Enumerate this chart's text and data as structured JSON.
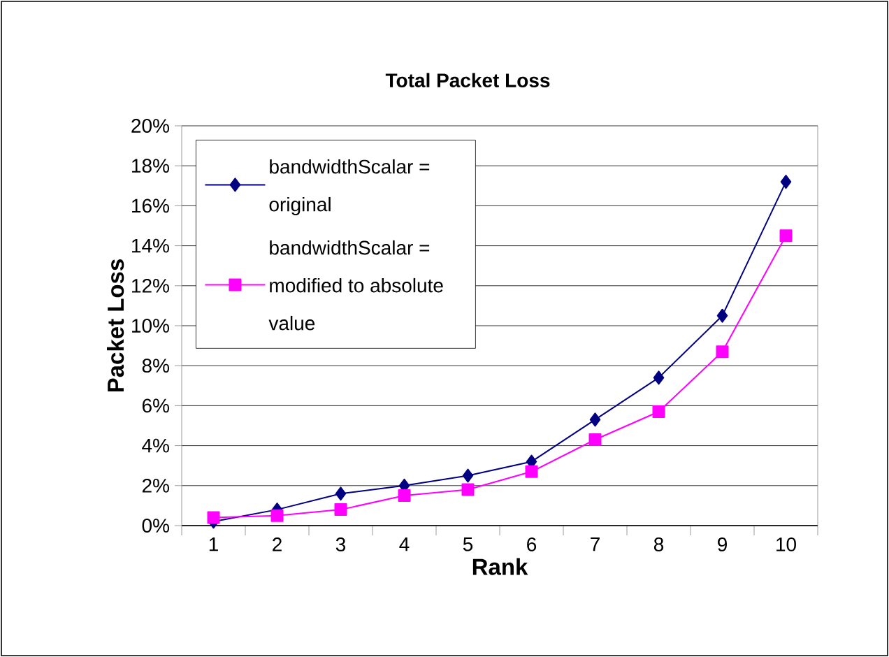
{
  "chart_data": {
    "type": "line",
    "title": "Total Packet Loss",
    "xlabel": "Rank",
    "ylabel": "Packet Loss",
    "categories": [
      "1",
      "2",
      "3",
      "4",
      "5",
      "6",
      "7",
      "8",
      "9",
      "10"
    ],
    "series": [
      {
        "name": "bandwidthScalar = original",
        "color": "#000080",
        "marker": "diamond",
        "values": [
          0.2,
          0.8,
          1.6,
          2.0,
          2.5,
          3.2,
          5.3,
          7.4,
          10.5,
          17.2
        ]
      },
      {
        "name": "bandwidthScalar = modified to absolute value",
        "color": "#ff00ff",
        "marker": "square",
        "values": [
          0.4,
          0.5,
          0.8,
          1.5,
          1.8,
          2.7,
          4.3,
          5.7,
          8.7,
          14.5
        ]
      }
    ],
    "ylim": [
      0,
      20
    ],
    "yticks": [
      {
        "value": 0,
        "label": "0%"
      },
      {
        "value": 2,
        "label": "2%"
      },
      {
        "value": 4,
        "label": "4%"
      },
      {
        "value": 6,
        "label": "6%"
      },
      {
        "value": 8,
        "label": "8%"
      },
      {
        "value": 10,
        "label": "10%"
      },
      {
        "value": 12,
        "label": "12%"
      },
      {
        "value": 14,
        "label": "14%"
      },
      {
        "value": 16,
        "label": "16%"
      },
      {
        "value": 18,
        "label": "18%"
      },
      {
        "value": 20,
        "label": "20%"
      }
    ],
    "grid": "y",
    "legend": "top left",
    "line_style": "solid"
  }
}
